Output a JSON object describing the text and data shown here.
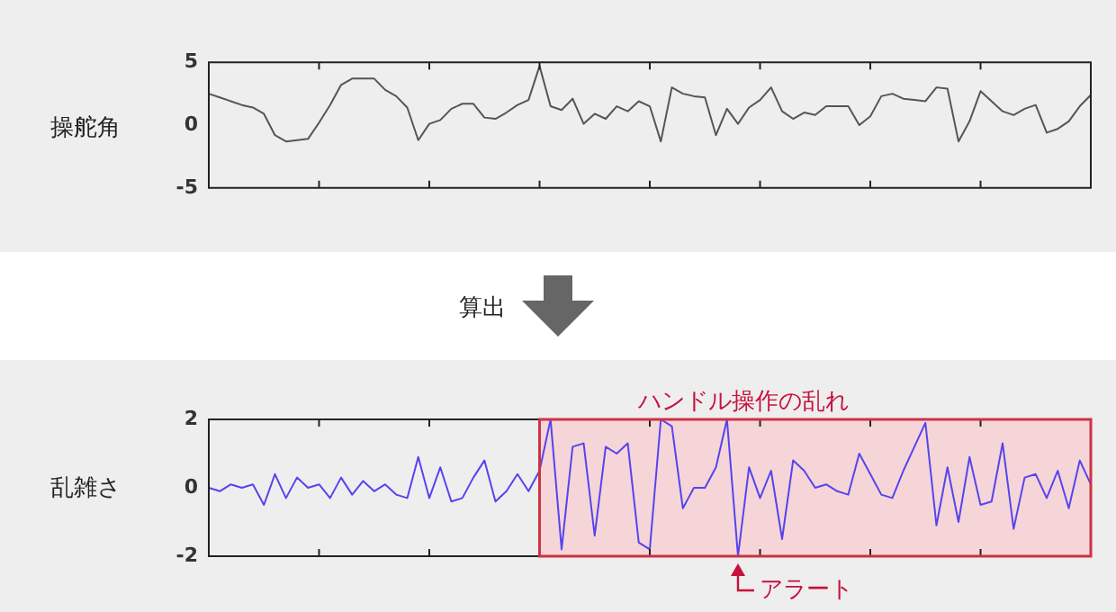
{
  "chart_data": [
    {
      "type": "line",
      "ylabel": "操舵角",
      "annotations": [
        "算出"
      ],
      "categories": [
        null,
        null,
        null,
        null,
        null,
        null,
        null,
        null,
        null,
        null,
        null,
        null,
        null,
        null,
        null,
        null,
        null,
        null,
        null,
        null,
        null,
        null,
        null,
        null,
        null,
        null,
        null,
        null,
        null,
        null,
        null,
        null,
        null,
        null,
        null,
        null,
        null,
        null,
        null,
        null,
        null,
        null,
        null,
        null,
        null,
        null,
        null,
        null,
        null,
        null,
        null,
        null,
        null,
        null,
        null,
        null,
        null,
        null,
        null,
        null,
        null,
        null,
        null,
        null,
        null,
        null,
        null,
        null,
        null,
        null,
        null,
        null,
        null,
        null,
        null,
        null,
        null,
        null,
        null,
        null,
        null
      ],
      "ylim": [
        -5,
        5
      ],
      "yticks": [
        -5,
        0,
        5
      ],
      "tick_labels": "y",
      "grid": false,
      "legend": false,
      "marker": "none",
      "series": [
        {
          "color": "#555555",
          "values": [
            2.5,
            2.2,
            1.9,
            1.6,
            1.4,
            0.9,
            -0.8,
            -1.3,
            -1.2,
            -1.1,
            0.2,
            1.6,
            3.2,
            3.7,
            3.7,
            3.7,
            2.8,
            2.3,
            1.4,
            -1.2,
            0.1,
            0.4,
            1.3,
            1.7,
            1.7,
            0.6,
            0.5,
            1.0,
            1.6,
            2.0,
            4.7,
            1.5,
            1.2,
            2.1,
            0.1,
            0.9,
            0.5,
            1.5,
            1.1,
            1.9,
            1.5,
            -1.3,
            3.0,
            2.5,
            2.3,
            2.2,
            -0.8,
            1.3,
            0.1,
            1.4,
            2.0,
            3.0,
            1.1,
            0.5,
            1.0,
            0.8,
            1.5,
            1.5,
            1.5,
            0.0,
            0.7,
            2.3,
            2.5,
            2.1,
            2.0,
            1.9,
            3.0,
            2.9,
            -1.3,
            0.3,
            2.7,
            1.9,
            1.1,
            0.8,
            1.3,
            1.6,
            -0.6,
            -0.3,
            0.3,
            1.5,
            2.4
          ]
        }
      ]
    },
    {
      "type": "line",
      "ylabel": "乱雑さ",
      "annotations": [
        "ハンドル操作の乱れ",
        "アラート"
      ],
      "categories": [
        null,
        null,
        null,
        null,
        null,
        null,
        null,
        null,
        null,
        null,
        null,
        null,
        null,
        null,
        null,
        null,
        null,
        null,
        null,
        null,
        null,
        null,
        null,
        null,
        null,
        null,
        null,
        null,
        null,
        null,
        null,
        null,
        null,
        null,
        null,
        null,
        null,
        null,
        null,
        null,
        null,
        null,
        null,
        null,
        null,
        null,
        null,
        null,
        null,
        null,
        null,
        null,
        null,
        null,
        null,
        null,
        null,
        null,
        null,
        null,
        null,
        null,
        null,
        null,
        null,
        null,
        null,
        null,
        null,
        null,
        null,
        null,
        null,
        null,
        null,
        null,
        null,
        null,
        null,
        null,
        null
      ],
      "ylim": [
        -2,
        2
      ],
      "yticks": [
        -2,
        0,
        2
      ],
      "tick_labels": "y",
      "grid": false,
      "legend": false,
      "marker": "none",
      "series": [
        {
          "color": "#5544ee",
          "values": [
            0,
            -0.1,
            0.1,
            0,
            0.1,
            -0.5,
            0.4,
            -0.3,
            0.3,
            0,
            0.1,
            -0.3,
            0.3,
            -0.2,
            0.2,
            -0.1,
            0.1,
            -0.2,
            -0.3,
            0.9,
            -0.3,
            0.6,
            -0.4,
            -0.3,
            0.3,
            0.8,
            -0.4,
            -0.1,
            0.4,
            -0.1,
            0.5,
            2.0,
            -1.8,
            1.2,
            1.3,
            -1.4,
            1.2,
            1.0,
            1.3,
            -1.6,
            -1.8,
            2.0,
            1.8,
            -0.6,
            0,
            0,
            0.6,
            2.0,
            -2.0,
            0.6,
            -0.3,
            0.5,
            -1.5,
            0.8,
            0.5,
            0,
            0.1,
            -0.1,
            -0.2,
            1.0,
            0.4,
            -0.2,
            -0.3,
            0.5,
            1.2,
            1.9,
            -1.1,
            0.6,
            -1.0,
            0.9,
            -0.5,
            -0.4,
            1.3,
            -1.2,
            0.3,
            0.4,
            -0.3,
            0.5,
            -0.6,
            0.8,
            0.1
          ]
        }
      ]
    }
  ]
}
